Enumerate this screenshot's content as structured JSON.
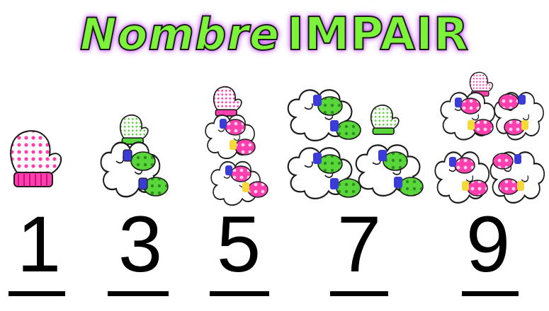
{
  "title": {
    "part1": "Nombre",
    "part2": "IMPAIR"
  },
  "numbers": [
    "1",
    "3",
    "5",
    "7",
    "9"
  ],
  "colors": {
    "title_fill": "#7cf23a",
    "title_glow": "#d63bff",
    "pink_mitten": "#ff3fae",
    "green_mitten": "#58d63a",
    "cuff_blue": "#3b3bd6",
    "cuff_yellow": "#f5d93a"
  },
  "groups": [
    {
      "number": "1",
      "mittens": 1,
      "pairs": 0
    },
    {
      "number": "3",
      "mittens": 3,
      "pairs": 1
    },
    {
      "number": "5",
      "mittens": 5,
      "pairs": 2
    },
    {
      "number": "7",
      "mittens": 7,
      "pairs": 3
    },
    {
      "number": "9",
      "mittens": 9,
      "pairs": 4
    }
  ]
}
